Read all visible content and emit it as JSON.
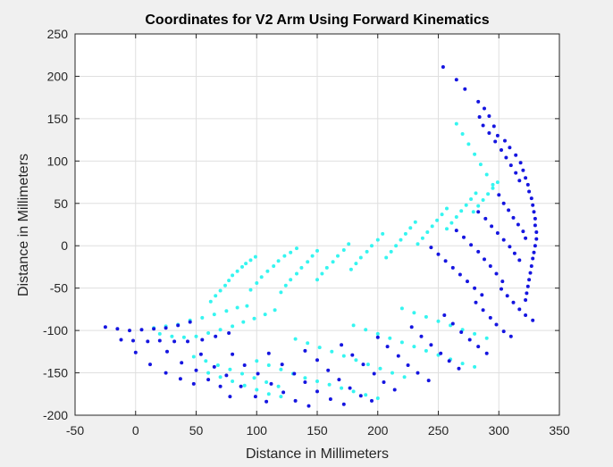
{
  "chart_data": {
    "type": "scatter",
    "title": "Coordinates for V2 Arm Using Forward Kinematics",
    "xlabel": "Distance in Millimeters",
    "ylabel": "Distance in Millimeters",
    "xlim": [
      -50,
      350
    ],
    "ylim": [
      -200,
      250
    ],
    "xticks": [
      -50,
      0,
      50,
      100,
      150,
      200,
      250,
      300,
      350
    ],
    "yticks": [
      -200,
      -150,
      -100,
      -50,
      0,
      50,
      100,
      150,
      200,
      250
    ],
    "grid": true,
    "legend": "none",
    "series": [
      {
        "color": "#1515e0",
        "points": [
          [
            -25,
            -96
          ],
          [
            -15,
            -98
          ],
          [
            -5,
            -100
          ],
          [
            5,
            -99
          ],
          [
            15,
            -98
          ],
          [
            25,
            -97
          ],
          [
            35,
            -94
          ],
          [
            45,
            -90
          ],
          [
            -12,
            -111
          ],
          [
            -2,
            -112
          ],
          [
            10,
            -113
          ],
          [
            20,
            -112
          ],
          [
            32,
            -113
          ],
          [
            43,
            -113
          ],
          [
            55,
            -111
          ],
          [
            66,
            -107
          ],
          [
            77,
            -103
          ],
          [
            0,
            -126
          ],
          [
            12,
            -140
          ],
          [
            25,
            -150
          ],
          [
            37,
            -157
          ],
          [
            48,
            -163
          ],
          [
            26,
            -125
          ],
          [
            38,
            -138
          ],
          [
            50,
            -147
          ],
          [
            60,
            -158
          ],
          [
            70,
            -166
          ],
          [
            78,
            -178
          ],
          [
            54,
            -128
          ],
          [
            65,
            -143
          ],
          [
            75,
            -153
          ],
          [
            87,
            -166
          ],
          [
            99,
            -178
          ],
          [
            108,
            -184
          ],
          [
            80,
            -128
          ],
          [
            90,
            -141
          ],
          [
            101,
            -151
          ],
          [
            112,
            -163
          ],
          [
            122,
            -173
          ],
          [
            132,
            -183
          ],
          [
            143,
            -189
          ],
          [
            110,
            -127
          ],
          [
            121,
            -140
          ],
          [
            131,
            -151
          ],
          [
            140,
            -161
          ],
          [
            150,
            -172
          ],
          [
            161,
            -181
          ],
          [
            172,
            -187
          ],
          [
            140,
            -124
          ],
          [
            150,
            -135
          ],
          [
            159,
            -147
          ],
          [
            168,
            -158
          ],
          [
            177,
            -168
          ],
          [
            186,
            -177
          ],
          [
            195,
            -183
          ],
          [
            170,
            -117
          ],
          [
            179,
            -129
          ],
          [
            188,
            -140
          ],
          [
            197,
            -151
          ],
          [
            205,
            -161
          ],
          [
            214,
            -170
          ],
          [
            200,
            -108
          ],
          [
            208,
            -119
          ],
          [
            217,
            -130
          ],
          [
            225,
            -141
          ],
          [
            233,
            -150
          ],
          [
            242,
            -159
          ],
          [
            228,
            -96
          ],
          [
            236,
            -107
          ],
          [
            244,
            -117
          ],
          [
            252,
            -127
          ],
          [
            259,
            -136
          ],
          [
            267,
            -145
          ],
          [
            255,
            -82
          ],
          [
            262,
            -92
          ],
          [
            269,
            -102
          ],
          [
            276,
            -111
          ],
          [
            283,
            -119
          ],
          [
            290,
            -127
          ],
          [
            281,
            -67
          ],
          [
            287,
            -76
          ],
          [
            293,
            -85
          ],
          [
            298,
            -93
          ],
          [
            304,
            -101
          ],
          [
            310,
            -107
          ],
          [
            302,
            -51
          ],
          [
            307,
            -59
          ],
          [
            312,
            -67
          ],
          [
            317,
            -75
          ],
          [
            322,
            -82
          ],
          [
            328,
            -88
          ],
          [
            254,
            211
          ],
          [
            265,
            196
          ],
          [
            272,
            185
          ],
          [
            283,
            170
          ],
          [
            288,
            162
          ],
          [
            292,
            153
          ],
          [
            296,
            141
          ],
          [
            299,
            130
          ],
          [
            305,
            124
          ],
          [
            309,
            116
          ],
          [
            314,
            107
          ],
          [
            318,
            98
          ],
          [
            320,
            89
          ],
          [
            322,
            80
          ],
          [
            324,
            72
          ],
          [
            325,
            64
          ],
          [
            327,
            56
          ],
          [
            328,
            48
          ],
          [
            329,
            40
          ],
          [
            330,
            32
          ],
          [
            330,
            24
          ],
          [
            331,
            16
          ],
          [
            331,
            8
          ],
          [
            330,
            0
          ],
          [
            329,
            -8
          ],
          [
            328,
            -15
          ],
          [
            327,
            -24
          ],
          [
            326,
            -32
          ],
          [
            325,
            -40
          ],
          [
            324,
            -48
          ],
          [
            323,
            -56
          ],
          [
            322,
            -64
          ],
          [
            284,
            152
          ],
          [
            287,
            142
          ],
          [
            292,
            133
          ],
          [
            297,
            123
          ],
          [
            302,
            113
          ],
          [
            306,
            104
          ],
          [
            310,
            95
          ],
          [
            314,
            86
          ],
          [
            317,
            77
          ],
          [
            300,
            60
          ],
          [
            304,
            50
          ],
          [
            308,
            42
          ],
          [
            312,
            33
          ],
          [
            316,
            25
          ],
          [
            320,
            17
          ],
          [
            322,
            9
          ],
          [
            283,
            40
          ],
          [
            289,
            32
          ],
          [
            294,
            23
          ],
          [
            299,
            15
          ],
          [
            304,
            7
          ],
          [
            309,
            -1
          ],
          [
            313,
            -9
          ],
          [
            317,
            -17
          ],
          [
            265,
            18
          ],
          [
            271,
            10
          ],
          [
            277,
            1
          ],
          [
            283,
            -7
          ],
          [
            288,
            -16
          ],
          [
            293,
            -24
          ],
          [
            298,
            -33
          ],
          [
            303,
            -42
          ],
          [
            244,
            -2
          ],
          [
            250,
            -10
          ],
          [
            256,
            -18
          ],
          [
            262,
            -26
          ],
          [
            268,
            -34
          ],
          [
            274,
            -42
          ],
          [
            280,
            -50
          ],
          [
            286,
            -58
          ]
        ]
      },
      {
        "color": "#35f5f0",
        "points": [
          [
            15,
            -97
          ],
          [
            25,
            -95
          ],
          [
            35,
            -93
          ],
          [
            45,
            -88
          ],
          [
            55,
            -85
          ],
          [
            65,
            -81
          ],
          [
            75,
            -77
          ],
          [
            84,
            -73
          ],
          [
            92,
            -71
          ],
          [
            20,
            -104
          ],
          [
            30,
            -107
          ],
          [
            40,
            -108
          ],
          [
            50,
            -107
          ],
          [
            60,
            -103
          ],
          [
            70,
            -99
          ],
          [
            80,
            -95
          ],
          [
            89,
            -90
          ],
          [
            98,
            -86
          ],
          [
            107,
            -81
          ],
          [
            115,
            -76
          ],
          [
            62,
            -66
          ],
          [
            66,
            -59
          ],
          [
            70,
            -53
          ],
          [
            74,
            -47
          ],
          [
            77,
            -41
          ],
          [
            80,
            -35
          ],
          [
            84,
            -30
          ],
          [
            88,
            -25
          ],
          [
            91,
            -21
          ],
          [
            95,
            -17
          ],
          [
            99,
            -13
          ],
          [
            95,
            -52
          ],
          [
            100,
            -44
          ],
          [
            104,
            -37
          ],
          [
            109,
            -30
          ],
          [
            114,
            -24
          ],
          [
            118,
            -18
          ],
          [
            123,
            -12
          ],
          [
            128,
            -8
          ],
          [
            133,
            -3
          ],
          [
            120,
            -55
          ],
          [
            124,
            -47
          ],
          [
            128,
            -40
          ],
          [
            133,
            -33
          ],
          [
            137,
            -26
          ],
          [
            142,
            -19
          ],
          [
            146,
            -12
          ],
          [
            150,
            -6
          ],
          [
            150,
            -40
          ],
          [
            154,
            -33
          ],
          [
            158,
            -26
          ],
          [
            163,
            -19
          ],
          [
            167,
            -12
          ],
          [
            172,
            -5
          ],
          [
            176,
            2
          ],
          [
            178,
            -28
          ],
          [
            182,
            -21
          ],
          [
            186,
            -14
          ],
          [
            191,
            -7
          ],
          [
            195,
            0
          ],
          [
            200,
            7
          ],
          [
            204,
            14
          ],
          [
            207,
            -14
          ],
          [
            211,
            -7
          ],
          [
            215,
            0
          ],
          [
            219,
            7
          ],
          [
            223,
            14
          ],
          [
            227,
            21
          ],
          [
            231,
            28
          ],
          [
            233,
            2
          ],
          [
            237,
            9
          ],
          [
            241,
            16
          ],
          [
            245,
            23
          ],
          [
            249,
            30
          ],
          [
            253,
            37
          ],
          [
            257,
            44
          ],
          [
            257,
            20
          ],
          [
            261,
            27
          ],
          [
            265,
            34
          ],
          [
            269,
            41
          ],
          [
            273,
            48
          ],
          [
            277,
            55
          ],
          [
            281,
            62
          ],
          [
            279,
            40
          ],
          [
            283,
            47
          ],
          [
            287,
            54
          ],
          [
            291,
            61
          ],
          [
            295,
            68
          ],
          [
            299,
            75
          ],
          [
            265,
            144
          ],
          [
            270,
            132
          ],
          [
            275,
            120
          ],
          [
            280,
            108
          ],
          [
            285,
            96
          ],
          [
            290,
            84
          ],
          [
            295,
            72
          ],
          [
            48,
            -131
          ],
          [
            58,
            -136
          ],
          [
            68,
            -141
          ],
          [
            78,
            -146
          ],
          [
            88,
            -151
          ],
          [
            98,
            -156
          ],
          [
            108,
            -161
          ],
          [
            118,
            -166
          ],
          [
            60,
            -150
          ],
          [
            70,
            -155
          ],
          [
            80,
            -160
          ],
          [
            90,
            -165
          ],
          [
            100,
            -170
          ],
          [
            110,
            -175
          ],
          [
            120,
            -178
          ],
          [
            100,
            -136
          ],
          [
            110,
            -141
          ],
          [
            120,
            -146
          ],
          [
            130,
            -151
          ],
          [
            140,
            -156
          ],
          [
            150,
            -160
          ],
          [
            160,
            -164
          ],
          [
            170,
            -168
          ],
          [
            180,
            -172
          ],
          [
            190,
            -176
          ],
          [
            200,
            -180
          ],
          [
            132,
            -110
          ],
          [
            142,
            -115
          ],
          [
            152,
            -120
          ],
          [
            162,
            -125
          ],
          [
            172,
            -130
          ],
          [
            182,
            -135
          ],
          [
            192,
            -140
          ],
          [
            202,
            -145
          ],
          [
            212,
            -150
          ],
          [
            222,
            -155
          ],
          [
            180,
            -94
          ],
          [
            190,
            -99
          ],
          [
            200,
            -104
          ],
          [
            210,
            -109
          ],
          [
            220,
            -114
          ],
          [
            230,
            -119
          ],
          [
            240,
            -124
          ],
          [
            250,
            -129
          ],
          [
            260,
            -134
          ],
          [
            270,
            -139
          ],
          [
            280,
            -143
          ],
          [
            220,
            -74
          ],
          [
            230,
            -79
          ],
          [
            240,
            -84
          ],
          [
            250,
            -89
          ],
          [
            260,
            -94
          ],
          [
            270,
            -99
          ],
          [
            280,
            -104
          ],
          [
            290,
            -109
          ]
        ]
      }
    ]
  }
}
